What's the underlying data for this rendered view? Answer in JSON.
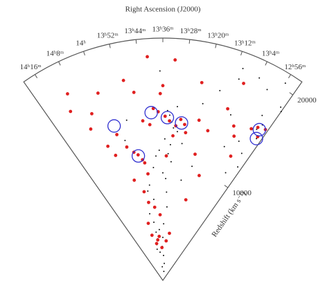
{
  "chart_data": {
    "type": "cone",
    "title": "Right Ascension (J2000)",
    "ylabel": "Redshift (km s⁻¹)",
    "xlim": [
      860,
      772
    ],
    "xticks": [
      {
        "value": 856,
        "label": "14ʰ16ᵐ"
      },
      {
        "value": 848,
        "label": "14ʰ8ᵐ"
      },
      {
        "value": 840,
        "label": "14ʰ"
      },
      {
        "value": 832,
        "label": "13ʰ52ᵐ"
      },
      {
        "value": 824,
        "label": "13ʰ44ᵐ"
      },
      {
        "value": 816,
        "label": "13ʰ36ᵐ"
      },
      {
        "value": 808,
        "label": "13ʰ28ᵐ"
      },
      {
        "value": 800,
        "label": "13ʰ20ᵐ"
      },
      {
        "value": 792,
        "label": "13ʰ12ᵐ"
      },
      {
        "value": 784,
        "label": "13ʰ4ᵐ"
      },
      {
        "value": 776,
        "label": "12ʰ56ᵐ"
      }
    ],
    "ylim": [
      0,
      21400
    ],
    "yticks": [
      10000,
      20000
    ],
    "series": [
      {
        "marker": "dot",
        "color": "#111111",
        "x": [
          812,
          811,
          813,
          814,
          810,
          809,
          815,
          812,
          813,
          811,
          776,
          775,
          774,
          773,
          777,
          772,
          780,
          776,
          774,
          778,
          818,
          820,
          822,
          816,
          826,
          828,
          824,
          830,
          827,
          821,
          812,
          813,
          814,
          815,
          816,
          817,
          800,
          795,
          790,
          785,
          806,
          803,
          798,
          788,
          780,
          825,
          828,
          826,
          829,
          823,
          832,
          835,
          810,
          808,
          814,
          819,
          817,
          790,
          784,
          776
        ],
        "values": [
          14000,
          13500,
          14600,
          15000,
          15400,
          13200,
          12500,
          12000,
          11200,
          10500,
          15700,
          16300,
          15000,
          18500,
          17000,
          18200,
          14000,
          13200,
          12000,
          11000,
          11500,
          11000,
          10000,
          9500,
          8500,
          8000,
          7200,
          6000,
          5200,
          4500,
          6500,
          7800,
          9000,
          5000,
          3800,
          3000,
          16000,
          17500,
          19000,
          13000,
          12200,
          9000,
          10400,
          15800,
          19200,
          3700,
          3200,
          4300,
          2800,
          2500,
          14500,
          12800,
          1500,
          800,
          2200,
          1200,
          18500,
          20000,
          19800,
          20500
        ]
      },
      {
        "marker": "filled",
        "color": "#e02020",
        "x": [
          813,
          810,
          815,
          818,
          808,
          806,
          820,
          811,
          814,
          817,
          822,
          825,
          830,
          828,
          832,
          827,
          835,
          838,
          826,
          831,
          829,
          800,
          795,
          790,
          785,
          778,
          776,
          774,
          773,
          780,
          840,
          845,
          850,
          848,
          842,
          836,
          824,
          819,
          805,
          802,
          798,
          792,
          788,
          783,
          812,
          816,
          821,
          827,
          830,
          833,
          825,
          828,
          822,
          818,
          810,
          806,
          834,
          844,
          852,
          796
        ],
        "values": [
          14100,
          13700,
          14500,
          14900,
          14300,
          13900,
          15200,
          12800,
          11000,
          16500,
          13800,
          14200,
          11300,
          10800,
          11600,
          10500,
          12200,
          13500,
          9500,
          8000,
          7000,
          14500,
          13800,
          16200,
          15000,
          15500,
          15900,
          15200,
          16100,
          12500,
          17500,
          16000,
          18500,
          14800,
          11800,
          9200,
          6500,
          5800,
          13200,
          17800,
          11500,
          9800,
          18800,
          14200,
          19500,
          17200,
          19800,
          16800,
          18000,
          4100,
          3600,
          3300,
          3900,
          2900,
          3500,
          4200,
          5200,
          12800,
          17000,
          7400
        ]
      },
      {
        "marker": "ring",
        "color": "#3030d0",
        "x": [
          838,
          821,
          814,
          807.5,
          830,
          775,
          774
        ],
        "values": [
          14300,
          14850,
          14380,
          14000,
          11200,
          15800,
          15000
        ]
      }
    ]
  }
}
